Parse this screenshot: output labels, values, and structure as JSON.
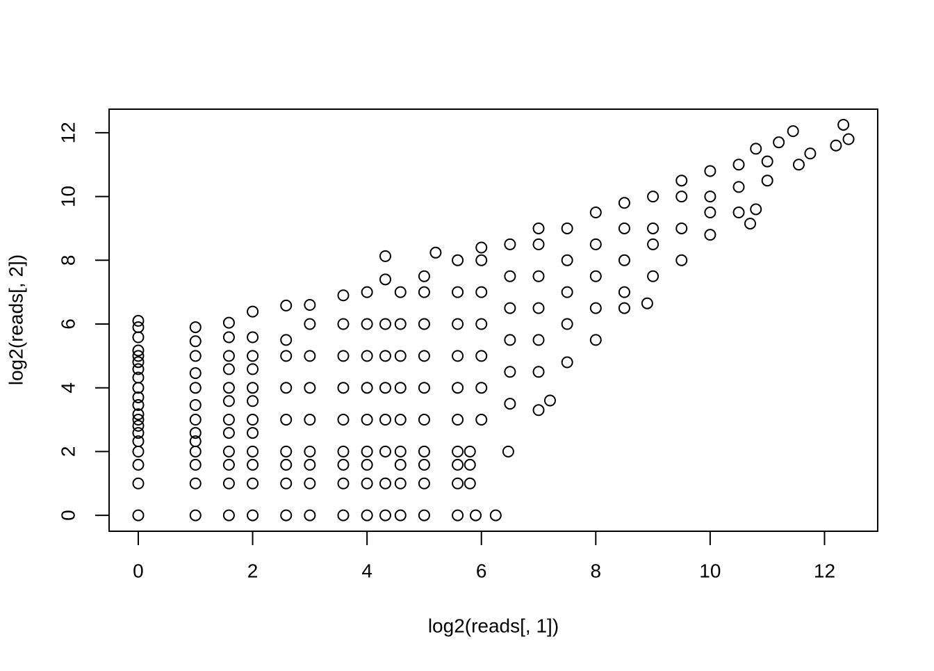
{
  "chart_data": {
    "type": "scatter",
    "xlabel": "log2(reads[, 1])",
    "ylabel": "log2(reads[, 2])",
    "xlim": [
      -0.51,
      12.93
    ],
    "ylim": [
      -0.5,
      12.74
    ],
    "xticks": [
      0,
      2,
      4,
      6,
      8,
      10,
      12
    ],
    "yticks": [
      0,
      2,
      4,
      6,
      8,
      10,
      12
    ],
    "color": "#000000",
    "x": [
      0,
      0,
      0,
      0,
      0,
      0,
      0,
      0,
      0,
      0,
      0,
      0,
      0,
      0,
      0,
      0,
      0,
      0,
      0,
      0,
      1,
      1,
      1,
      1,
      1,
      1,
      1,
      1,
      1,
      1,
      1,
      1,
      1,
      1.585,
      1.585,
      1.585,
      1.585,
      1.585,
      1.585,
      1.585,
      1.585,
      1.585,
      1.585,
      1.585,
      1.585,
      2,
      2,
      2,
      2,
      2,
      2,
      2,
      2,
      2,
      2,
      2,
      2,
      2.585,
      2.585,
      2.585,
      2.585,
      2.585,
      2.585,
      2.585,
      2.585,
      2.585,
      3,
      3,
      3,
      3,
      3,
      3,
      3,
      3,
      3,
      3.585,
      3.585,
      3.585,
      3.585,
      3.585,
      3.585,
      3.585,
      3.585,
      3.585,
      4,
      4,
      4,
      4,
      4,
      4,
      4,
      4,
      4,
      4.32,
      4.32,
      4.32,
      4.32,
      4.32,
      4.32,
      4.32,
      4.32,
      4.32,
      4.585,
      4.585,
      4.585,
      4.585,
      4.585,
      4.585,
      4.585,
      4.585,
      4.585,
      5,
      5,
      5,
      5,
      5,
      5,
      5,
      5,
      5,
      5,
      5.2,
      5.585,
      5.585,
      5.585,
      5.585,
      5.585,
      5.585,
      5.585,
      5.585,
      5.585,
      5.585,
      5.8,
      5.8,
      5.8,
      5.9,
      6.25,
      6.47,
      6,
      6,
      6,
      6,
      6,
      6,
      6,
      6.5,
      6.5,
      6.5,
      6.5,
      6.5,
      6.5,
      7,
      7,
      7,
      7,
      7,
      7,
      7,
      7.2,
      7.5,
      7.5,
      7.5,
      7.5,
      7.5,
      8,
      8,
      8,
      8,
      8,
      8.5,
      8.5,
      8.5,
      8.5,
      8.5,
      8.9,
      9,
      9,
      9,
      9,
      9.5,
      9.5,
      9.5,
      9.5,
      10,
      10,
      10,
      10,
      10.5,
      10.5,
      10.5,
      10.7,
      10.8,
      10.8,
      11,
      11,
      11.2,
      11.45,
      11.55,
      11.75,
      12.2,
      12.33,
      12.42
    ],
    "values": [
      0,
      1,
      1.585,
      2,
      2.322,
      2.585,
      2.807,
      3,
      3.17,
      3.459,
      3.7,
      4,
      4.32,
      4.585,
      4.807,
      5,
      5.17,
      5.585,
      5.9,
      6.1,
      0,
      1,
      1.585,
      2,
      2.322,
      2.585,
      3,
      3.459,
      4,
      4.459,
      5,
      5.46,
      5.9,
      0,
      1,
      1.585,
      2,
      2.585,
      3,
      3.585,
      4,
      4.585,
      5,
      5.585,
      6.04,
      0,
      1,
      1.585,
      2,
      2.585,
      3,
      3.585,
      4,
      4.585,
      5,
      5.585,
      6.39,
      0,
      1,
      1.585,
      2,
      3,
      4,
      5,
      5.5,
      6.58,
      0,
      1,
      1.585,
      2,
      3,
      4,
      5,
      6,
      6.6,
      0,
      1,
      1.585,
      2,
      3,
      4,
      5,
      6,
      6.9,
      0,
      1,
      1.585,
      2,
      3,
      4,
      5,
      6,
      7,
      0,
      1,
      2,
      3,
      4,
      5,
      6,
      7.4,
      8.13,
      0,
      1,
      1.585,
      2,
      3,
      4,
      5,
      6,
      7,
      0,
      1,
      1.585,
      2,
      3,
      4,
      5,
      6,
      7,
      7.5,
      8.24,
      0,
      1,
      1.585,
      2,
      3,
      4,
      5,
      6,
      7,
      8,
      1,
      1.585,
      2,
      0,
      0,
      2,
      3,
      4,
      5,
      6,
      7,
      8,
      8.4,
      3.5,
      4.5,
      5.5,
      6.5,
      7.5,
      8.5,
      3.3,
      4.5,
      5.5,
      6.5,
      7.5,
      8.5,
      9,
      3.6,
      4.8,
      6,
      7,
      8,
      9,
      5.5,
      6.5,
      7.5,
      8.5,
      9.5,
      6.5,
      7,
      8,
      9,
      9.8,
      6.65,
      7.5,
      8.5,
      9,
      10,
      8,
      9,
      10,
      10.5,
      8.8,
      9.5,
      10,
      10.8,
      9.5,
      10.3,
      11,
      9.15,
      9.6,
      11.5,
      10.5,
      11.1,
      11.7,
      12.05,
      11,
      11.35,
      11.6,
      12.25,
      11.8
    ]
  }
}
